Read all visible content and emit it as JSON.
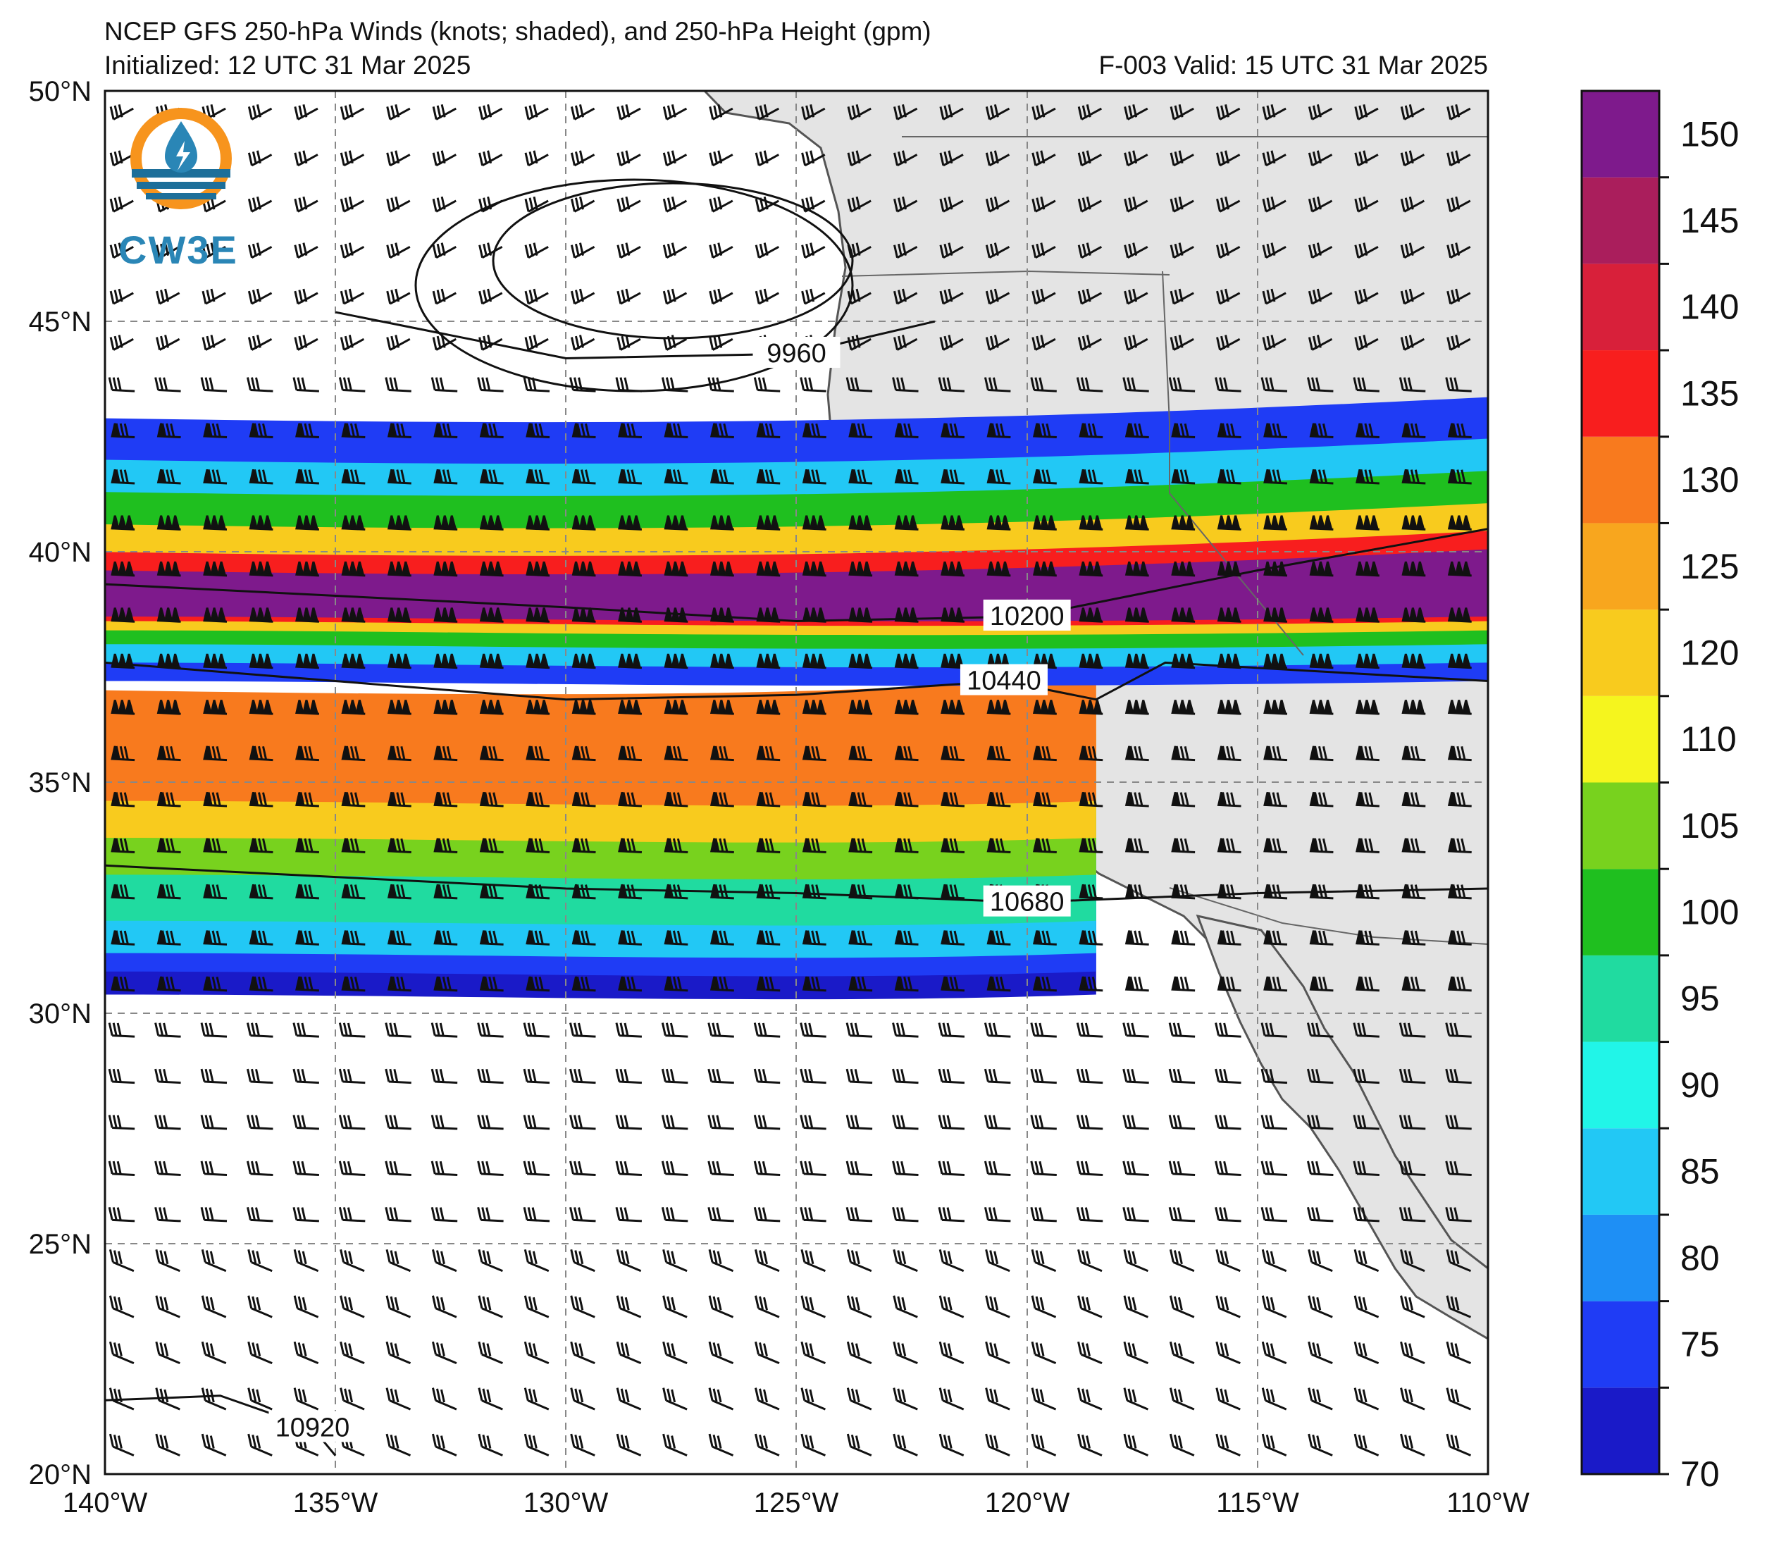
{
  "header": {
    "title": "NCEP GFS 250-hPa Winds (knots; shaded), and 250-hPa Height (gpm)",
    "initialized": "Initialized: 12 UTC 31 Mar 2025",
    "valid": "F-003  Valid: 15 UTC 31 Mar 2025"
  },
  "logo": {
    "text": "CW3E"
  },
  "map": {
    "extent": {
      "lon_min": -140,
      "lon_max": -110,
      "lat_min": 20,
      "lat_max": 50
    },
    "lat_labels": [
      "50°N",
      "45°N",
      "40°N",
      "35°N",
      "30°N",
      "25°N",
      "20°N"
    ],
    "lon_labels": [
      "140°W",
      "135°W",
      "130°W",
      "125°W",
      "120°W",
      "115°W",
      "110°W"
    ],
    "height_contours": [
      {
        "label": "9960",
        "lat_lon": [
          [
            -135,
            45.2
          ],
          [
            -130,
            44.2
          ],
          [
            -125,
            44.3
          ],
          [
            -122,
            45
          ]
        ]
      },
      {
        "label": "10200",
        "lat_lon": [
          [
            -140,
            39.3
          ],
          [
            -130,
            38.8
          ],
          [
            -125,
            38.5
          ],
          [
            -120,
            38.6
          ],
          [
            -115,
            39.6
          ],
          [
            -110,
            40.5
          ]
        ]
      },
      {
        "label": "10440",
        "lat_lon": [
          [
            -140,
            37.6
          ],
          [
            -130,
            36.8
          ],
          [
            -125,
            36.9
          ],
          [
            -120.5,
            37.2
          ],
          [
            -118.5,
            36.8
          ],
          [
            -117,
            37.6
          ],
          [
            -110,
            37.2
          ]
        ]
      },
      {
        "label": "10680",
        "lat_lon": [
          [
            -140,
            33.2
          ],
          [
            -130,
            32.7
          ],
          [
            -125,
            32.6
          ],
          [
            -120,
            32.4
          ],
          [
            -115,
            32.6
          ],
          [
            -110,
            32.7
          ]
        ]
      },
      {
        "label": "10920",
        "lat_lon": [
          [
            -140,
            21.6
          ],
          [
            -137.5,
            21.7
          ],
          [
            -135.5,
            21.0
          ],
          [
            -135,
            20.4
          ]
        ]
      }
    ],
    "wind_speed_bands": [
      {
        "min": 70,
        "lat_center": 31.0
      },
      {
        "min": 95,
        "lat_center": 33.5
      },
      {
        "min": 120,
        "lat_center": 36.0
      },
      {
        "min": 145,
        "lat_center": 38.8
      },
      {
        "min": 110,
        "lat_center": 40.6
      },
      {
        "min": 75,
        "lat_center": 42.0
      }
    ]
  },
  "colorbar": {
    "labels": [
      "70",
      "75",
      "80",
      "85",
      "90",
      "95",
      "100",
      "105",
      "110",
      "120",
      "125",
      "130",
      "135",
      "140",
      "145",
      "150"
    ],
    "colors": [
      "#1a1ac8",
      "#1f3cf5",
      "#1e8ff5",
      "#22c8f5",
      "#21f5e8",
      "#20dba0",
      "#1fbf1f",
      "#78d21e",
      "#f5f51e",
      "#f8cb1e",
      "#f8a61e",
      "#f87a1e",
      "#f81e1e",
      "#d8203a",
      "#aa1e5c",
      "#7e1a8c"
    ]
  }
}
